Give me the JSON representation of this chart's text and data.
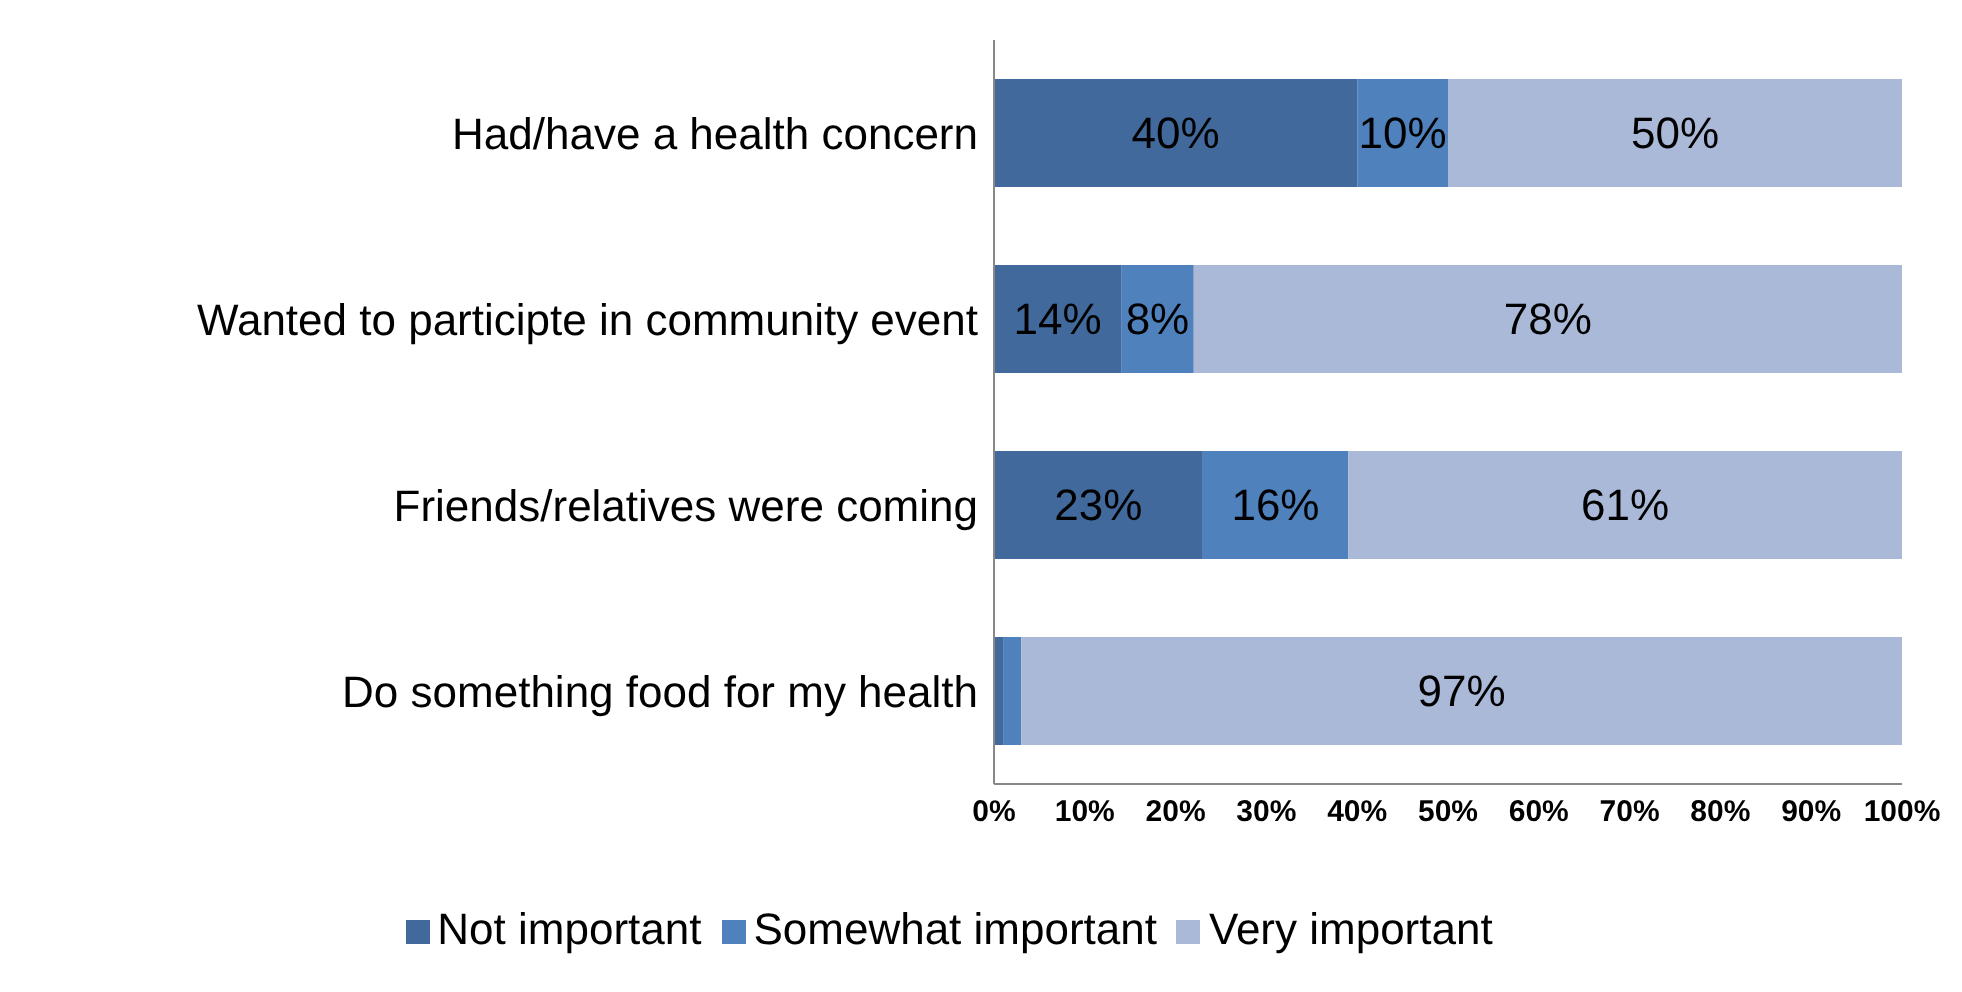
{
  "chart_data": {
    "type": "bar",
    "orientation": "horizontal",
    "stacked": true,
    "categories": [
      "Had/have a health concern",
      "Wanted to participte in community event",
      "Friends/relatives were coming",
      "Do something food for my health"
    ],
    "series": [
      {
        "name": "Not important",
        "color": "#41699b",
        "values": [
          40,
          14,
          23,
          1
        ],
        "value_labels": [
          "40%",
          "14%",
          "23%",
          null
        ]
      },
      {
        "name": "Somewhat important",
        "color": "#4f81bd",
        "values": [
          10,
          8,
          16,
          2
        ],
        "value_labels": [
          "10%",
          "8%",
          "16%",
          null
        ]
      },
      {
        "name": "Very important",
        "color": "#aab9d8",
        "values": [
          50,
          78,
          61,
          97
        ],
        "value_labels": [
          "50%",
          "78%",
          "61%",
          "97%"
        ]
      }
    ],
    "xlim": [
      0,
      100
    ],
    "xticks": [
      {
        "value": 0,
        "label": "0%"
      },
      {
        "value": 10,
        "label": "10%"
      },
      {
        "value": 20,
        "label": "20%"
      },
      {
        "value": 30,
        "label": "30%"
      },
      {
        "value": 40,
        "label": "40%"
      },
      {
        "value": 50,
        "label": "50%"
      },
      {
        "value": 60,
        "label": "60%"
      },
      {
        "value": 70,
        "label": "70%"
      },
      {
        "value": 80,
        "label": "80%"
      },
      {
        "value": 90,
        "label": "90%"
      },
      {
        "value": 100,
        "label": "100%"
      }
    ],
    "grid": false,
    "legend": "bottom"
  }
}
